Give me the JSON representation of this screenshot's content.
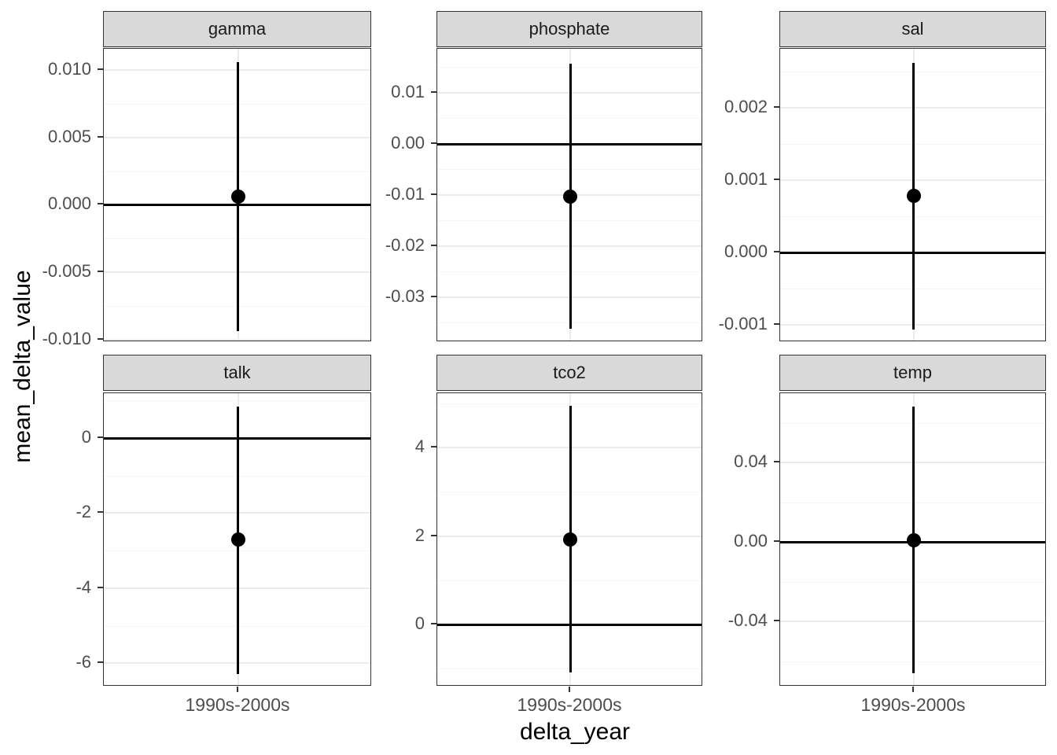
{
  "chart_data": {
    "type": "scatter",
    "geom": "pointrange",
    "title": "",
    "xlabel": "delta_year",
    "ylabel": "mean_delta_value",
    "x_categories": [
      "1990s-2000s"
    ],
    "legend_position": "none",
    "grid": "on",
    "facet_layout": {
      "rows": 2,
      "cols": 3,
      "scales": "free_y"
    },
    "facets": [
      {
        "label": "gamma",
        "ylim": [
          -0.0102,
          0.0116
        ],
        "yticks": [
          {
            "value": 0.01,
            "label": "0.010"
          },
          {
            "value": 0.005,
            "label": "0.005"
          },
          {
            "value": 0.0,
            "label": "0.000"
          },
          {
            "value": -0.005,
            "label": "-0.005"
          },
          {
            "value": -0.01,
            "label": "-0.010"
          }
        ],
        "yminor": [
          0.0075,
          0.0025,
          -0.0025,
          -0.0075
        ],
        "x": "1990s-2000s",
        "point": 0.0006,
        "ci_low": -0.0094,
        "ci_high": 0.0106,
        "hline": 0
      },
      {
        "label": "phosphate",
        "ylim": [
          -0.0388,
          0.0186
        ],
        "yticks": [
          {
            "value": 0.01,
            "label": "0.01"
          },
          {
            "value": 0.0,
            "label": "0.00"
          },
          {
            "value": -0.01,
            "label": "-0.01"
          },
          {
            "value": -0.02,
            "label": "-0.02"
          },
          {
            "value": -0.03,
            "label": "-0.03"
          }
        ],
        "yminor": [
          0.015,
          0.005,
          -0.005,
          -0.015,
          -0.025,
          -0.035
        ],
        "x": "1990s-2000s",
        "point": -0.0103,
        "ci_low": -0.0362,
        "ci_high": 0.0157,
        "hline": 0
      },
      {
        "label": "sal",
        "ylim": [
          -0.00124,
          0.00282
        ],
        "yticks": [
          {
            "value": 0.002,
            "label": "0.002"
          },
          {
            "value": 0.001,
            "label": "0.001"
          },
          {
            "value": 0.0,
            "label": "0.000"
          },
          {
            "value": -0.001,
            "label": "-0.001"
          }
        ],
        "yminor": [
          0.0025,
          0.0015,
          0.0005,
          -0.0005
        ],
        "x": "1990s-2000s",
        "point": 0.00078,
        "ci_low": -0.00107,
        "ci_high": 0.00262,
        "hline": 0
      },
      {
        "label": "talk",
        "ylim": [
          -6.62,
          1.19
        ],
        "yticks": [
          {
            "value": 0,
            "label": "0"
          },
          {
            "value": -2,
            "label": "-2"
          },
          {
            "value": -4,
            "label": "-4"
          },
          {
            "value": -6,
            "label": "-6"
          }
        ],
        "yminor": [
          1,
          -1,
          -3,
          -5
        ],
        "x": "1990s-2000s",
        "point": -2.7,
        "ci_low": -6.28,
        "ci_high": 0.84,
        "hline": 0
      },
      {
        "label": "tco2",
        "ylim": [
          -1.4,
          5.23
        ],
        "yticks": [
          {
            "value": 4,
            "label": "4"
          },
          {
            "value": 2,
            "label": "2"
          },
          {
            "value": 0,
            "label": "0"
          }
        ],
        "yminor": [
          5,
          3,
          1,
          -1
        ],
        "x": "1990s-2000s",
        "point": 1.93,
        "ci_low": -1.08,
        "ci_high": 4.94,
        "hline": 0
      },
      {
        "label": "temp",
        "ylim": [
          -0.0728,
          0.0749
        ],
        "yticks": [
          {
            "value": 0.04,
            "label": "0.04"
          },
          {
            "value": 0.0,
            "label": "0.00"
          },
          {
            "value": -0.04,
            "label": "-0.04"
          }
        ],
        "yminor": [
          0.06,
          0.02,
          -0.02,
          -0.06
        ],
        "x": "1990s-2000s",
        "point": 0.001,
        "ci_low": -0.0662,
        "ci_high": 0.0681,
        "hline": 0
      }
    ]
  },
  "colors": {
    "point": "#000000",
    "interval_line": "#000000",
    "zero_line": "#000000",
    "panel_border": "#333333",
    "strip_background": "#d9d9d9",
    "strip_text": "#1a1a1a",
    "grid_major": "#ebebeb",
    "grid_minor": "#f6f6f6",
    "tick_text": "#4d4d4d",
    "tick_mark": "#333333",
    "axis_title": "#000000",
    "background": "#ffffff"
  }
}
